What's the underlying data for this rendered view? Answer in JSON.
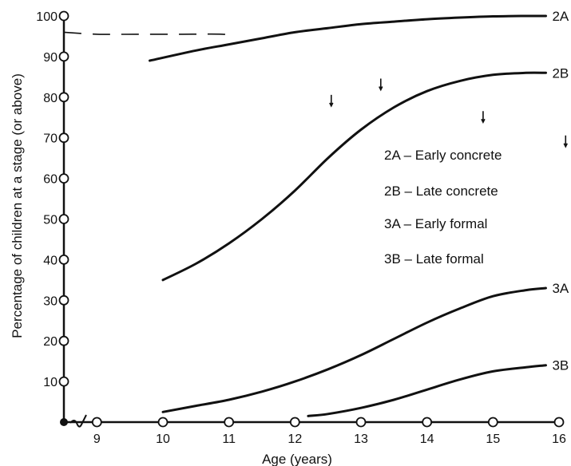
{
  "chart_data": {
    "type": "line",
    "title": "",
    "xlabel": "Age (years)",
    "ylabel": "Percentage of children at a stage (or above)",
    "xlim": [
      8.5,
      16
    ],
    "ylim": [
      0,
      100
    ],
    "x_ticks": [
      9,
      10,
      11,
      12,
      13,
      14,
      15,
      16
    ],
    "y_ticks": [
      10,
      20,
      30,
      40,
      50,
      60,
      70,
      80,
      90,
      100
    ],
    "grid": false,
    "legend": {
      "placement": "center-right",
      "entries": [
        "2A – Early concrete",
        "2B – Late concrete",
        "3A – Early formal",
        "3B – Late formal"
      ]
    },
    "series": [
      {
        "label": "2A",
        "x": [
          9.8,
          10.5,
          11.0,
          11.5,
          12.0,
          12.5,
          13.0,
          13.5,
          14.0,
          14.5,
          15.0,
          15.5,
          15.8
        ],
        "y": [
          89,
          91.5,
          93,
          94.5,
          96,
          97,
          98,
          98.6,
          99.2,
          99.6,
          99.9,
          100,
          100
        ]
      },
      {
        "label": "2B",
        "x": [
          10.0,
          10.5,
          11.0,
          11.5,
          12.0,
          12.5,
          13.0,
          13.5,
          14.0,
          14.5,
          15.0,
          15.5,
          15.8
        ],
        "y": [
          35,
          39,
          44,
          50,
          57,
          65,
          72,
          77.5,
          81.5,
          84,
          85.5,
          86,
          86
        ]
      },
      {
        "label": "3A",
        "x": [
          10.0,
          10.5,
          11.0,
          11.5,
          12.0,
          12.5,
          13.0,
          13.5,
          14.0,
          14.5,
          15.0,
          15.5,
          15.8
        ],
        "y": [
          2.5,
          4,
          5.5,
          7.5,
          10,
          13,
          16.5,
          20.5,
          24.5,
          28,
          31,
          32.5,
          33
        ]
      },
      {
        "label": "3B",
        "x": [
          12.2,
          12.5,
          13.0,
          13.5,
          14.0,
          14.5,
          15.0,
          15.5,
          15.8
        ],
        "y": [
          1.5,
          2,
          3.5,
          5.5,
          8,
          10.5,
          12.5,
          13.5,
          14
        ]
      }
    ],
    "dashed_reference": {
      "x": [
        8.5,
        9.0,
        9.6,
        10.3,
        10.9,
        11.1
      ],
      "y": [
        96,
        95.5,
        95.5,
        95.5,
        95.5,
        95
      ]
    },
    "arrows": [
      {
        "x": 12.55,
        "y": 79
      },
      {
        "x": 13.3,
        "y": 83
      },
      {
        "x": 14.85,
        "y": 75
      },
      {
        "x": 16.1,
        "y": 69
      }
    ]
  }
}
